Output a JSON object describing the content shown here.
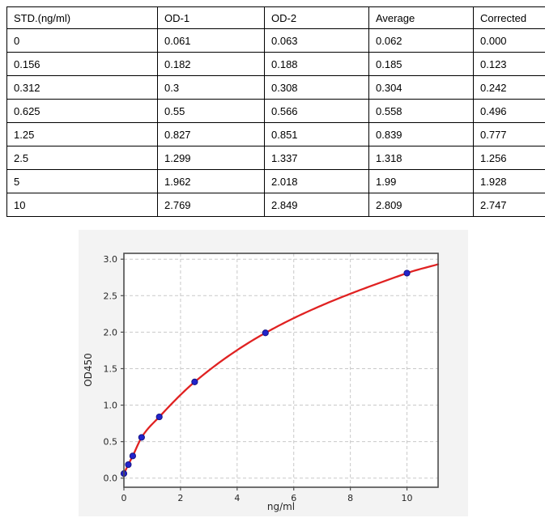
{
  "table": {
    "headers": [
      "STD.(ng/ml)",
      "OD-1",
      "OD-2",
      "Average",
      "Corrected"
    ],
    "rows": [
      [
        "0",
        "0.061",
        "0.063",
        "0.062",
        "0.000"
      ],
      [
        "0.156",
        "0.182",
        "0.188",
        "0.185",
        "0.123"
      ],
      [
        "0.312",
        "0.3",
        "0.308",
        "0.304",
        "0.242"
      ],
      [
        "0.625",
        "0.55",
        "0.566",
        "0.558",
        "0.496"
      ],
      [
        "1.25",
        "0.827",
        "0.851",
        "0.839",
        "0.777"
      ],
      [
        "2.5",
        "1.299",
        "1.337",
        "1.318",
        "1.256"
      ],
      [
        "5",
        "1.962",
        "2.018",
        "1.99",
        "1.928"
      ],
      [
        "10",
        "2.769",
        "2.849",
        "2.809",
        "2.747"
      ]
    ]
  },
  "chart_data": {
    "type": "scatter",
    "title": "",
    "xlabel": "ng/ml",
    "ylabel": "OD450",
    "x": [
      0,
      0.156,
      0.312,
      0.625,
      1.25,
      2.5,
      5,
      10
    ],
    "y": [
      0.062,
      0.185,
      0.304,
      0.558,
      0.839,
      1.318,
      1.99,
      2.809
    ],
    "fit_curve": "smooth fit through all points",
    "fit_curve_end": {
      "x": 11.1,
      "y": 2.93
    },
    "xlim": [
      0,
      11.1
    ],
    "ylim": [
      -0.125,
      3.08
    ],
    "xticks": [
      0,
      2,
      4,
      6,
      8,
      10
    ],
    "yticks": [
      0.0,
      0.5,
      1.0,
      1.5,
      2.0,
      2.5,
      3.0
    ],
    "grid": "dashed",
    "legend": "none",
    "colors": {
      "point_fill": "#2323cb",
      "point_edge": "#151585",
      "curve": "#e02222",
      "panel_bg": "#f3f3f3",
      "plot_bg": "#ffffff",
      "grid_line": "#c9c9c9",
      "spine": "#4d4d4d"
    }
  }
}
